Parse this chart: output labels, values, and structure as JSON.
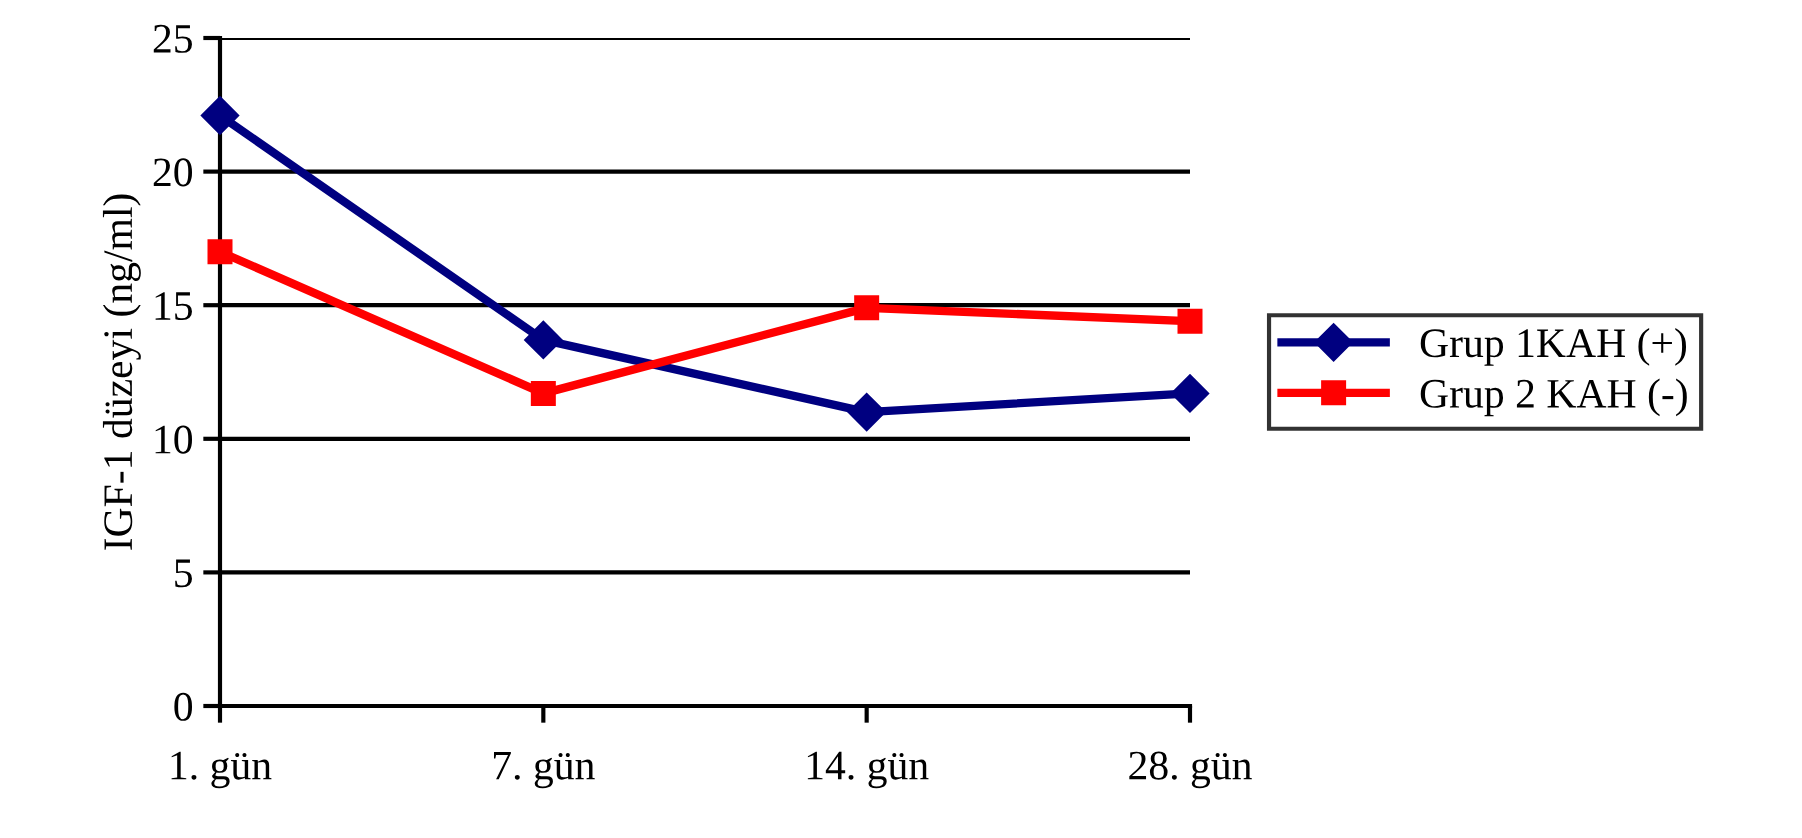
{
  "chart_data": {
    "type": "line",
    "ylabel": "IGF-1 düzeyi (ng/ml)",
    "categories": [
      "1. gün",
      "7. gün",
      "14. gün",
      "28. gün"
    ],
    "series": [
      {
        "name": "Grup 1KAH (+)",
        "color": "#000080",
        "marker": "diamond",
        "values": [
          22.1,
          13.7,
          11.0,
          11.7
        ]
      },
      {
        "name": "Grup 2 KAH (-)",
        "color": "#ff0000",
        "marker": "square",
        "values": [
          17.0,
          11.7,
          14.9,
          14.4
        ]
      }
    ],
    "ylim": [
      0,
      25
    ],
    "yticks": [
      0,
      5,
      10,
      15,
      20,
      25
    ],
    "grid": "y",
    "legend": "right"
  }
}
